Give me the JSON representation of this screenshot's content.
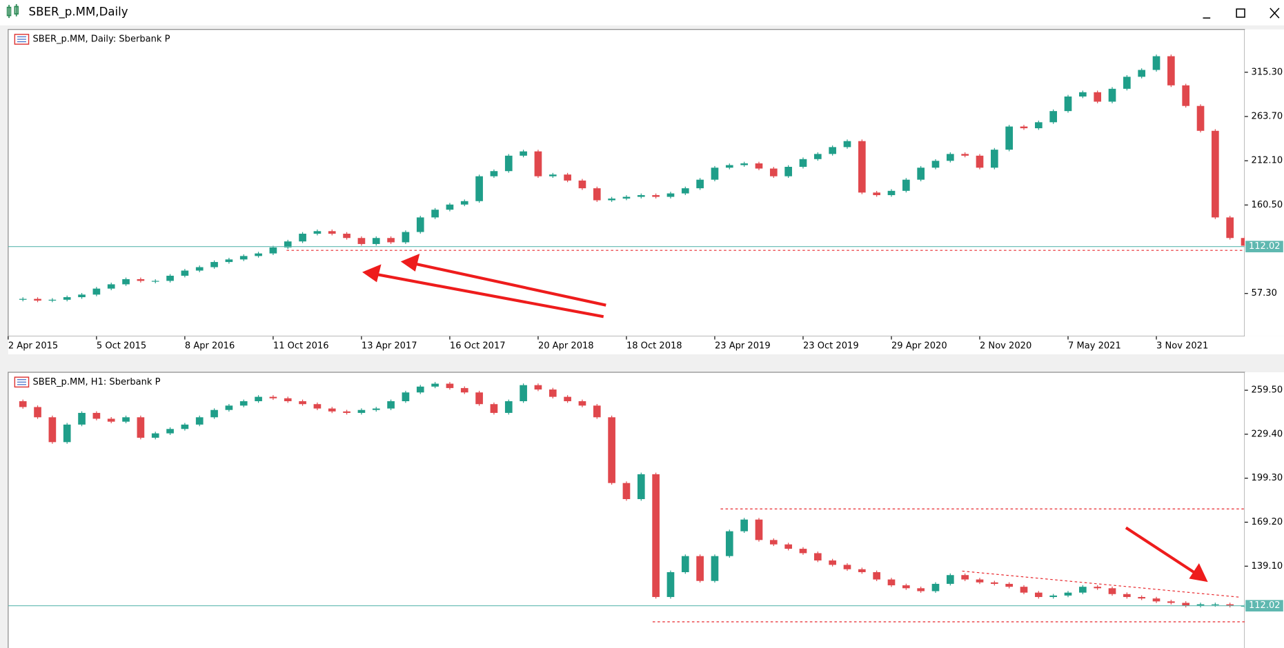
{
  "window": {
    "title": "SBER_p.MM,Daily"
  },
  "chart_data": [
    {
      "type": "candlestick",
      "title": "SBER_p.MM, Daily:  Sberbank P",
      "values": [
        50,
        51,
        49,
        50,
        53,
        56,
        63,
        68,
        74,
        72,
        72,
        78,
        84,
        88,
        94,
        97,
        101,
        104,
        111,
        118,
        127,
        130,
        127,
        122,
        115,
        122,
        117,
        129,
        146,
        155,
        161,
        165,
        194,
        200,
        218,
        223,
        194,
        196,
        189,
        180,
        166,
        168,
        170,
        172,
        170,
        174,
        180,
        190,
        204,
        207,
        209,
        203,
        194,
        205,
        214,
        220,
        228,
        235,
        175,
        172,
        177,
        190,
        204,
        212,
        220,
        218,
        204,
        225,
        252,
        250,
        257,
        270,
        287,
        292,
        281,
        296,
        310,
        318,
        334,
        300,
        276,
        247,
        146,
        122,
        113
      ],
      "xlim": [
        0,
        84
      ],
      "xticks": [
        {
          "value": 0,
          "label": "2 Apr 2015"
        },
        {
          "value": 6,
          "label": "5 Oct 2015"
        },
        {
          "value": 12,
          "label": "8 Apr 2016"
        },
        {
          "value": 18,
          "label": "11 Oct 2016"
        },
        {
          "value": 24,
          "label": "13 Apr 2017"
        },
        {
          "value": 30,
          "label": "16 Oct 2017"
        },
        {
          "value": 36,
          "label": "20 Apr 2018"
        },
        {
          "value": 42,
          "label": "18 Oct 2018"
        },
        {
          "value": 48,
          "label": "23 Apr 2019"
        },
        {
          "value": 54,
          "label": "23 Oct 2019"
        },
        {
          "value": 60,
          "label": "29 Apr 2020"
        },
        {
          "value": 66,
          "label": "2 Nov 2020"
        },
        {
          "value": 72,
          "label": "7 May 2021"
        },
        {
          "value": 78,
          "label": "3 Nov 2021"
        }
      ],
      "ylim": [
        7.4,
        365.2
      ],
      "yticks": [
        {
          "value": 57.3,
          "label": "57.30"
        },
        {
          "value": 160.5,
          "label": "160.50"
        },
        {
          "value": 212.1,
          "label": "212.10"
        },
        {
          "value": 263.7,
          "label": "263.70"
        },
        {
          "value": 315.3,
          "label": "315.30"
        }
      ],
      "last_price": 112.02,
      "up_color": "#1f9e89",
      "down_color": "#e0474c",
      "price_line_color": "#5fb8b0"
    },
    {
      "type": "candlestick",
      "title": "SBER_p.MM, H1:  Sberbank P",
      "values": [
        252,
        248,
        241,
        224,
        236,
        244,
        240,
        238,
        241,
        227,
        230,
        233,
        236,
        241,
        246,
        249,
        252,
        255,
        254,
        252,
        250,
        247,
        245,
        244,
        246,
        247,
        252,
        258,
        262,
        264,
        261,
        258,
        250,
        244,
        252,
        263,
        260,
        255,
        252,
        249,
        241,
        196,
        185,
        202,
        118,
        135,
        146,
        129,
        146,
        163,
        171,
        157,
        154,
        151,
        148,
        143,
        140,
        137,
        135,
        130,
        126,
        124,
        122,
        127,
        133,
        130,
        128,
        127,
        125,
        121,
        118,
        119,
        121,
        125,
        124,
        120,
        118,
        117,
        115,
        114,
        112,
        113,
        113,
        112,
        112
      ],
      "xlim": [
        0,
        84
      ],
      "ylim": [
        83.1,
        271.8
      ],
      "yticks": [
        {
          "value": 139.1,
          "label": "139.10"
        },
        {
          "value": 169.2,
          "label": "169.20"
        },
        {
          "value": 199.3,
          "label": "199.30"
        },
        {
          "value": 229.4,
          "label": "229.40"
        },
        {
          "value": 259.5,
          "label": "259.50"
        }
      ],
      "last_price": 112.02,
      "up_color": "#1f9e89",
      "down_color": "#e0474c",
      "price_line_color": "#5fb8b0"
    }
  ]
}
